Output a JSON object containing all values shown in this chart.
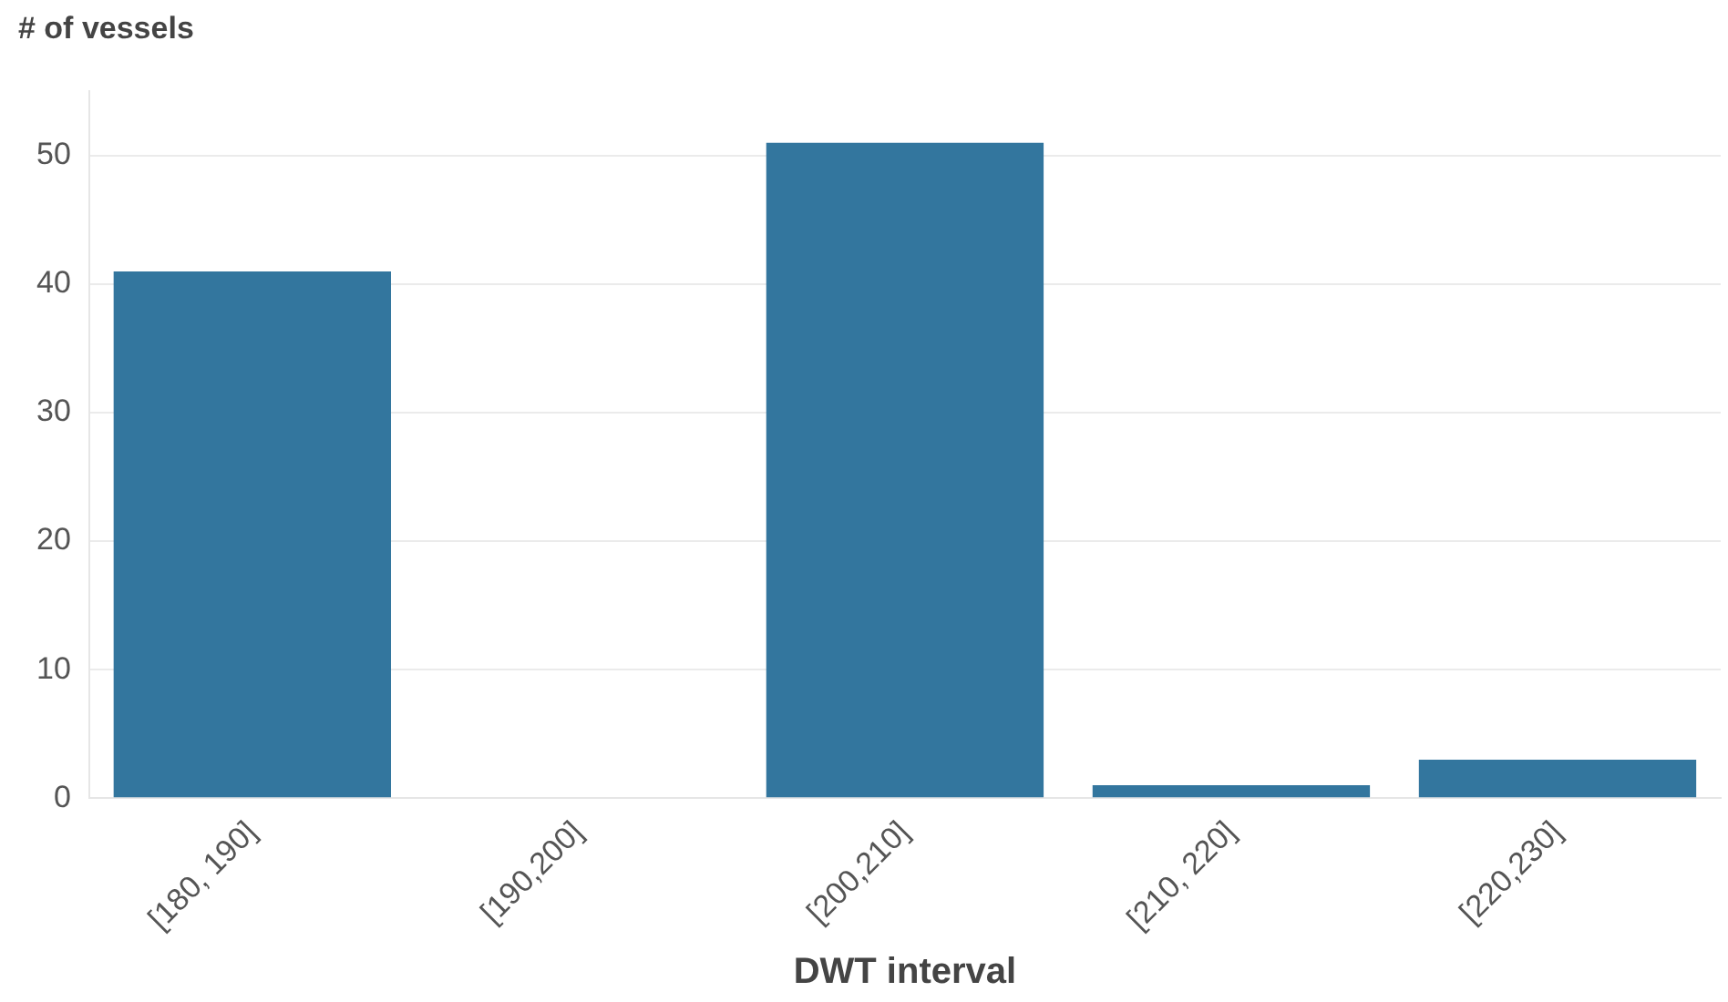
{
  "chart_data": {
    "type": "bar",
    "ylabel": "# of vessels",
    "xlabel": "DWT interval",
    "categories": [
      "[180, 190]",
      "[190,200]",
      "[200,210]",
      "[210, 220]",
      "[220,230]"
    ],
    "values": [
      41,
      0,
      51,
      1,
      3
    ],
    "color": "#33769e",
    "ylim": [
      0,
      55
    ],
    "yticks": [
      0,
      10,
      20,
      30,
      40,
      50
    ],
    "grid": "y",
    "legend": false
  }
}
